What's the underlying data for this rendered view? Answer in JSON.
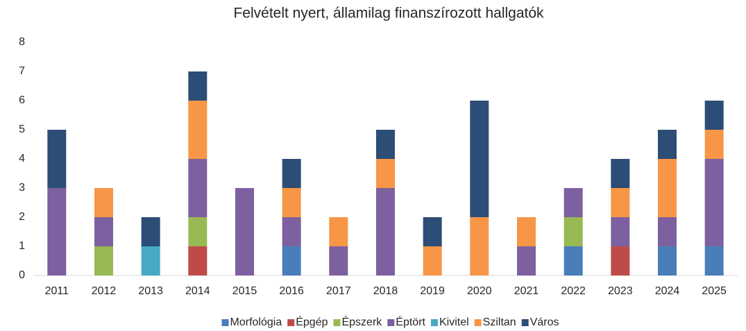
{
  "chart_data": {
    "type": "bar",
    "stacked": true,
    "title": "Felvételt nyert, államilag finanszírozott hallgatók",
    "categories": [
      "2011",
      "2012",
      "2013",
      "2014",
      "2015",
      "2016",
      "2017",
      "2018",
      "2019",
      "2020",
      "2021",
      "2022",
      "2023",
      "2024",
      "2025"
    ],
    "series": [
      {
        "name": "Morfológia",
        "color": "#4a7ebb",
        "values": [
          0,
          0,
          0,
          0,
          0,
          1,
          0,
          0,
          0,
          0,
          0,
          1,
          0,
          1,
          1
        ]
      },
      {
        "name": "Épgép",
        "color": "#be4b48",
        "values": [
          0,
          0,
          0,
          1,
          0,
          0,
          0,
          0,
          0,
          0,
          0,
          0,
          1,
          0,
          0
        ]
      },
      {
        "name": "Épszerk",
        "color": "#98b954",
        "values": [
          0,
          1,
          0,
          1,
          0,
          0,
          0,
          0,
          0,
          0,
          0,
          1,
          0,
          0,
          0
        ]
      },
      {
        "name": "Éptört",
        "color": "#7d60a0",
        "values": [
          3,
          1,
          0,
          2,
          3,
          1,
          1,
          3,
          0,
          0,
          1,
          1,
          1,
          1,
          3
        ]
      },
      {
        "name": "Kivitel",
        "color": "#46aac5",
        "values": [
          0,
          0,
          1,
          0,
          0,
          0,
          0,
          0,
          0,
          0,
          0,
          0,
          0,
          0,
          0
        ]
      },
      {
        "name": "Sziltan",
        "color": "#f79646",
        "values": [
          0,
          1,
          0,
          2,
          0,
          1,
          1,
          1,
          1,
          2,
          1,
          0,
          1,
          2,
          1
        ]
      },
      {
        "name": "Város",
        "color": "#2c4d75",
        "values": [
          2,
          0,
          1,
          1,
          0,
          1,
          0,
          1,
          1,
          4,
          0,
          0,
          1,
          1,
          1
        ]
      }
    ],
    "ylim": [
      0,
      8
    ],
    "yticks": [
      0,
      1,
      2,
      3,
      4,
      5,
      6,
      7,
      8
    ],
    "grid": false,
    "legend": "bottom"
  }
}
